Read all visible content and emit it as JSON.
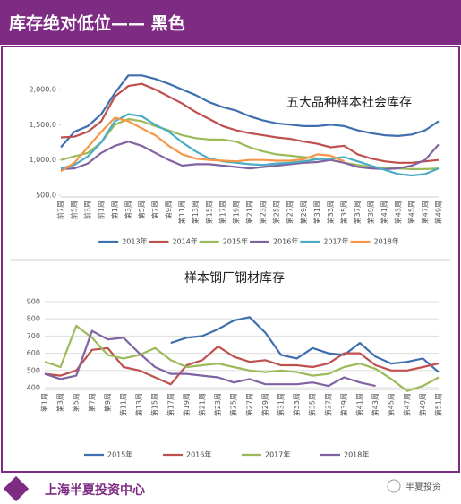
{
  "header": {
    "title": "库存绝对低位—— 黑色"
  },
  "footer": {
    "org": "上海半夏投资中心",
    "brand": "半夏投资"
  },
  "chart_data": [
    {
      "type": "line",
      "title": "五大品种样本社会库存",
      "categories": [
        "前7周",
        "前5周",
        "前3周",
        "前1周",
        "第1周",
        "第3周",
        "第5周",
        "第7周",
        "第9周",
        "第11周",
        "第13周",
        "第15周",
        "第17周",
        "第19周",
        "第21周",
        "第23周",
        "第25周",
        "第27周",
        "第29周",
        "第31周",
        "第33周",
        "第35周",
        "第37周",
        "第39周",
        "第41周",
        "第43周",
        "第45周",
        "第47周",
        "第49周"
      ],
      "ylim": [
        500,
        2000
      ],
      "yticks": [
        {
          "value": 500,
          "label": "500.0"
        },
        {
          "value": 1000,
          "label": "1,000.0"
        },
        {
          "value": 1500,
          "label": "1,500.0"
        },
        {
          "value": 2000,
          "label": "2,000.0"
        }
      ],
      "grid": false,
      "series": [
        {
          "name": "2013年",
          "color": "#3f6fae",
          "values": [
            1180,
            1400,
            1480,
            1650,
            1950,
            2200,
            2200,
            2150,
            2080,
            2000,
            1920,
            1820,
            1750,
            1700,
            1620,
            1560,
            1520,
            1500,
            1480,
            1480,
            1500,
            1480,
            1420,
            1380,
            1350,
            1340,
            1360,
            1420,
            1550
          ]
        },
        {
          "name": "2014年",
          "color": "#c0504d",
          "values": [
            1320,
            1330,
            1400,
            1550,
            1900,
            2050,
            2080,
            2000,
            1900,
            1800,
            1680,
            1580,
            1480,
            1420,
            1380,
            1350,
            1320,
            1300,
            1260,
            1230,
            1180,
            1200,
            1080,
            1020,
            980,
            960,
            960,
            980,
            1000
          ]
        },
        {
          "name": "2015年",
          "color": "#9bbb59",
          "values": [
            1000,
            1050,
            1100,
            1250,
            1500,
            1580,
            1550,
            1480,
            1420,
            1350,
            1310,
            1290,
            1290,
            1260,
            1180,
            1120,
            1080,
            1060,
            1040,
            1020,
            1000,
            960,
            930,
            900,
            890,
            880,
            870,
            870,
            880
          ]
        },
        {
          "name": "2016年",
          "color": "#8064a2",
          "values": [
            870,
            880,
            950,
            1100,
            1200,
            1260,
            1200,
            1100,
            1000,
            920,
            940,
            940,
            920,
            900,
            880,
            900,
            920,
            940,
            960,
            970,
            1000,
            960,
            900,
            880,
            870,
            880,
            920,
            1000,
            1220
          ]
        },
        {
          "name": "2017年",
          "color": "#4bacc6",
          "values": [
            880,
            930,
            1050,
            1250,
            1550,
            1650,
            1620,
            1500,
            1400,
            1250,
            1120,
            1020,
            980,
            960,
            940,
            930,
            950,
            960,
            980,
            1010,
            1020,
            1040,
            980,
            920,
            860,
            800,
            780,
            800,
            880
          ]
        },
        {
          "name": "2018年",
          "color": "#f79646",
          "values": [
            840,
            960,
            1180,
            1400,
            1600,
            1550,
            1450,
            1350,
            1200,
            1080,
            1020,
            1000,
            990,
            980,
            1000,
            1000,
            990,
            990,
            1010,
            1080,
            1060,
            980,
            null,
            null,
            null,
            null,
            null,
            null,
            null
          ]
        }
      ]
    },
    {
      "type": "line",
      "title": "样本钢厂钢材库存",
      "categories": [
        "第1周",
        "第3周",
        "第5周",
        "第7周",
        "第9周",
        "第11周",
        "第13周",
        "第15周",
        "第17周",
        "第19周",
        "第21周",
        "第23周",
        "第25周",
        "第27周",
        "第29周",
        "第31周",
        "第33周",
        "第35周",
        "第37周",
        "第39周",
        "第41周",
        "第43周",
        "第45周",
        "第47周",
        "第49周",
        "第51周"
      ],
      "ylim": [
        400,
        900
      ],
      "yticks": [
        400,
        500,
        600,
        700,
        800,
        900
      ],
      "grid": true,
      "series": [
        {
          "name": "2015年",
          "color": "#3f6fae",
          "values": [
            null,
            null,
            null,
            null,
            null,
            null,
            null,
            null,
            660,
            690,
            700,
            740,
            790,
            810,
            720,
            590,
            570,
            630,
            600,
            590,
            660,
            580,
            540,
            550,
            570,
            490
          ]
        },
        {
          "name": "2016年",
          "color": "#c0504d",
          "values": [
            480,
            470,
            500,
            620,
            630,
            520,
            500,
            460,
            420,
            530,
            560,
            640,
            580,
            550,
            560,
            530,
            530,
            520,
            540,
            600,
            600,
            530,
            500,
            500,
            520,
            540
          ]
        },
        {
          "name": "2017年",
          "color": "#9bbb59",
          "values": [
            550,
            520,
            760,
            690,
            590,
            570,
            590,
            630,
            560,
            520,
            530,
            540,
            520,
            500,
            490,
            500,
            490,
            470,
            480,
            520,
            540,
            510,
            450,
            380,
            410,
            460
          ]
        },
        {
          "name": "2018年",
          "color": "#8064a2",
          "values": [
            480,
            450,
            470,
            730,
            680,
            690,
            600,
            520,
            480,
            480,
            470,
            460,
            430,
            450,
            420,
            420,
            420,
            430,
            410,
            460,
            430,
            410,
            null,
            null,
            null,
            null
          ]
        }
      ]
    }
  ]
}
